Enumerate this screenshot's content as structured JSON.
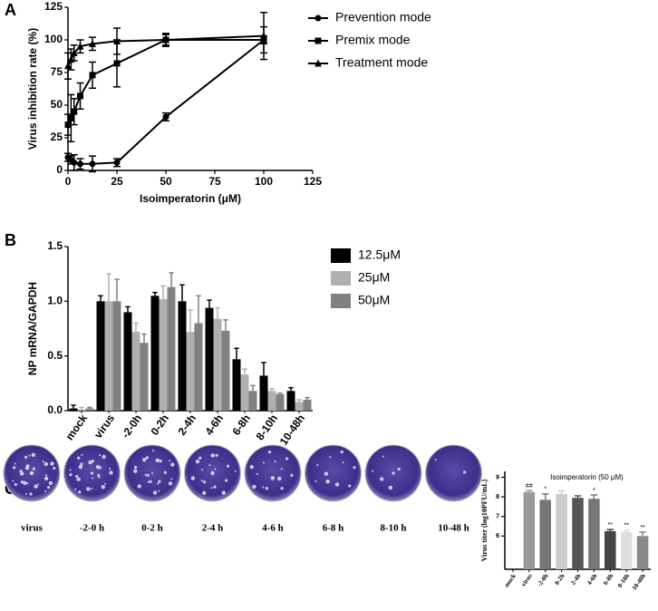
{
  "chart_data": [
    {
      "type": "line",
      "panel_label": "A",
      "xlabel": "Isoimperatorin (μM)",
      "ylabel": "Virus inhibition rate (%)",
      "x": [
        0,
        1.5625,
        3.125,
        6.25,
        12.5,
        25,
        50,
        100
      ],
      "xlim": [
        0,
        125
      ],
      "xticks": [
        0,
        25,
        50,
        75,
        100,
        125
      ],
      "ylim": [
        0,
        125
      ],
      "yticks": [
        0,
        25,
        50,
        75,
        100,
        125
      ],
      "series": [
        {
          "name": "Prevention mode",
          "marker": "circle",
          "color": "#000000",
          "values": [
            10,
            8,
            6,
            5,
            5,
            6,
            41,
            100
          ],
          "errors": [
            3,
            3,
            6,
            4,
            6,
            3,
            3,
            3
          ]
        },
        {
          "name": "Premix mode",
          "marker": "square",
          "color": "#000000",
          "values": [
            35,
            40,
            45,
            57,
            73,
            82,
            100,
            100
          ],
          "errors": [
            8,
            18,
            10,
            10,
            10,
            18,
            5,
            10
          ]
        },
        {
          "name": "Treatment mode",
          "marker": "triangle",
          "color": "#000000",
          "values": [
            80,
            85,
            90,
            95,
            97,
            99,
            100,
            103
          ],
          "errors": [
            10,
            8,
            6,
            5,
            5,
            10,
            4,
            18
          ]
        }
      ]
    },
    {
      "type": "bar",
      "panel_label": "B",
      "ylabel": "NP mRNA/GAPDH",
      "categories": [
        "mock",
        "virus",
        "-2-0h",
        "0-2h",
        "2-4h",
        "4-6h",
        "6-8h",
        "8-10h",
        "10-48h"
      ],
      "ylim": [
        0,
        1.5
      ],
      "yticks": [
        {
          "value": 0,
          "label": "0.0"
        },
        {
          "value": 0.5,
          "label": "0.5"
        },
        {
          "value": 1,
          "label": "1.0"
        },
        {
          "value": 1.5,
          "label": "1.5"
        }
      ],
      "series": [
        {
          "name": "12.5μM",
          "color": "#000000",
          "values": [
            0.02,
            1.0,
            0.9,
            1.05,
            1.0,
            0.94,
            0.47,
            0.32,
            0.18
          ],
          "errors": [
            0.03,
            0.05,
            0.05,
            0.03,
            0.15,
            0.07,
            0.1,
            0.12,
            0.03
          ]
        },
        {
          "name": "25μM",
          "color": "#b0b0b0",
          "values": [
            0.01,
            1.0,
            0.72,
            1.02,
            0.72,
            0.84,
            0.33,
            0.18,
            0.08
          ],
          "errors": [
            0.02,
            0.25,
            0.08,
            0.12,
            0.2,
            0.1,
            0.05,
            0.02,
            0.02
          ]
        },
        {
          "name": "50μM",
          "color": "#808080",
          "values": [
            0.02,
            1.0,
            0.62,
            1.13,
            0.8,
            0.73,
            0.18,
            0.15,
            0.1
          ],
          "errors": [
            0.01,
            0.2,
            0.08,
            0.13,
            0.25,
            0.1,
            0.05,
            0.01,
            0.02
          ]
        }
      ]
    },
    {
      "type": "bar",
      "panel_label": "C",
      "title": "Isoimperatorin (50 μM)",
      "ylabel": "Virus titer (log10PFU/mL)",
      "categories": [
        "mock",
        "virus",
        "-2-0h",
        "0-2h",
        "2-4h",
        "4-6h",
        "6-8h",
        "8-10h",
        "10-48h"
      ],
      "ylim": [
        4.3,
        9.3
      ],
      "yticks": [
        6,
        7,
        8,
        9
      ],
      "values": [
        null,
        8.25,
        7.85,
        8.15,
        7.95,
        7.9,
        6.25,
        6.2,
        6.0
      ],
      "errors": [
        null,
        0.08,
        0.3,
        0.15,
        0.1,
        0.2,
        0.08,
        0.1,
        0.2
      ],
      "colors": [
        "#999999",
        "#999999",
        "#777777",
        "#cccccc",
        "#555555",
        "#777777",
        "#444444",
        "#dddddd",
        "#888888"
      ],
      "annotations": [
        null,
        "##",
        "*",
        null,
        null,
        "*",
        "**",
        "**",
        "**"
      ],
      "plate_labels": [
        "virus",
        "-2-0 h",
        "0-2 h",
        "2-4 h",
        "4-6 h",
        "6-8 h",
        "8-10 h",
        "10-48 h"
      ]
    }
  ]
}
